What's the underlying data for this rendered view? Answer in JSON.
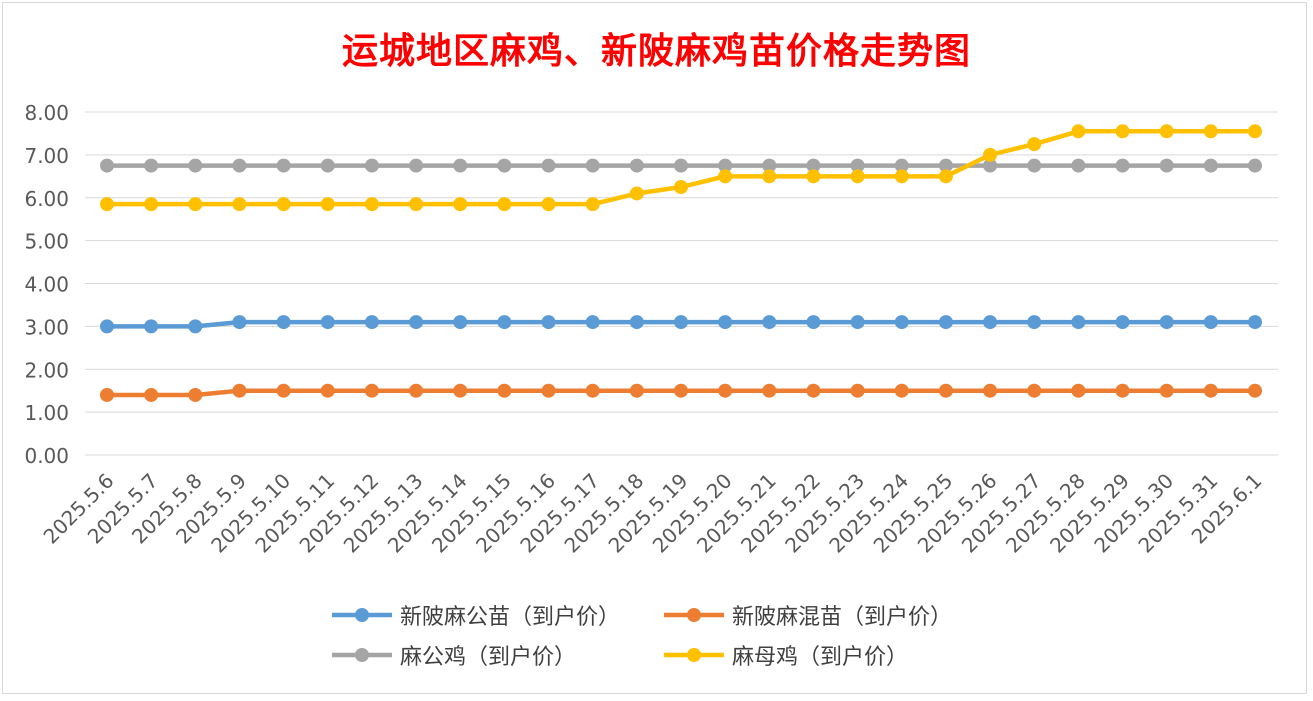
{
  "chart_data": {
    "type": "line",
    "title": "运城地区麻鸡、新陂麻鸡苗价格走势图",
    "categories": [
      "2025.5.6",
      "2025.5.7",
      "2025.5.8",
      "2025.5.9",
      "2025.5.10",
      "2025.5.11",
      "2025.5.12",
      "2025.5.13",
      "2025.5.14",
      "2025.5.15",
      "2025.5.16",
      "2025.5.17",
      "2025.5.18",
      "2025.5.19",
      "2025.5.20",
      "2025.5.21",
      "2025.5.22",
      "2025.5.23",
      "2025.5.24",
      "2025.5.25",
      "2025.5.26",
      "2025.5.27",
      "2025.5.28",
      "2025.5.29",
      "2025.5.30",
      "2025.5.31",
      "2025.6.1"
    ],
    "yticks": [
      "0.00",
      "1.00",
      "2.00",
      "3.00",
      "4.00",
      "5.00",
      "6.00",
      "7.00",
      "8.00"
    ],
    "ylim": [
      0,
      8
    ],
    "grid": true,
    "legend_position": "bottom",
    "series": [
      {
        "name": "新陂麻公苗（到户价）",
        "color": "#5b9bd5",
        "values": [
          3.0,
          3.0,
          3.0,
          3.1,
          3.1,
          3.1,
          3.1,
          3.1,
          3.1,
          3.1,
          3.1,
          3.1,
          3.1,
          3.1,
          3.1,
          3.1,
          3.1,
          3.1,
          3.1,
          3.1,
          3.1,
          3.1,
          3.1,
          3.1,
          3.1,
          3.1,
          3.1
        ]
      },
      {
        "name": "新陂麻混苗（到户价）",
        "color": "#ed7d31",
        "values": [
          1.4,
          1.4,
          1.4,
          1.5,
          1.5,
          1.5,
          1.5,
          1.5,
          1.5,
          1.5,
          1.5,
          1.5,
          1.5,
          1.5,
          1.5,
          1.5,
          1.5,
          1.5,
          1.5,
          1.5,
          1.5,
          1.5,
          1.5,
          1.5,
          1.5,
          1.5,
          1.5
        ]
      },
      {
        "name": "麻公鸡（到户价）",
        "color": "#a5a5a5",
        "values": [
          6.75,
          6.75,
          6.75,
          6.75,
          6.75,
          6.75,
          6.75,
          6.75,
          6.75,
          6.75,
          6.75,
          6.75,
          6.75,
          6.75,
          6.75,
          6.75,
          6.75,
          6.75,
          6.75,
          6.75,
          6.75,
          6.75,
          6.75,
          6.75,
          6.75,
          6.75,
          6.75
        ]
      },
      {
        "name": "麻母鸡（到户价）",
        "color": "#ffc000",
        "values": [
          5.85,
          5.85,
          5.85,
          5.85,
          5.85,
          5.85,
          5.85,
          5.85,
          5.85,
          5.85,
          5.85,
          5.85,
          6.1,
          6.25,
          6.5,
          6.5,
          6.5,
          6.5,
          6.5,
          6.5,
          7.0,
          7.25,
          7.55,
          7.55,
          7.55,
          7.55,
          7.55
        ]
      }
    ]
  }
}
